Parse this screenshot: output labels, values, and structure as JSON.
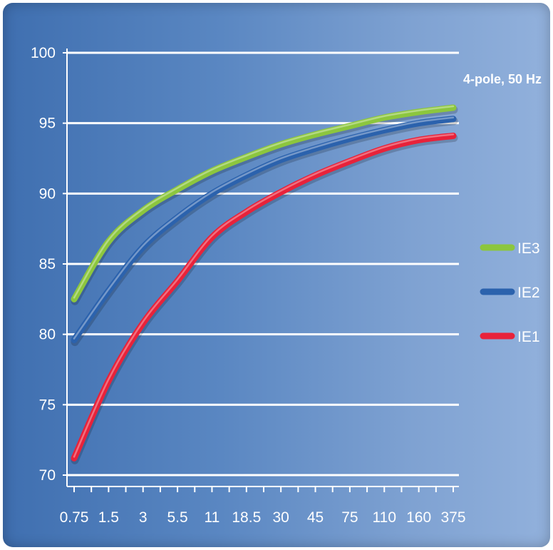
{
  "chart_data": {
    "type": "line",
    "title": "",
    "xlabel": "",
    "ylabel": "",
    "annotation": "4-pole, 50 Hz",
    "categories": [
      "0.75",
      "1.5",
      "3",
      "5.5",
      "11",
      "18.5",
      "30",
      "45",
      "75",
      "110",
      "160",
      "375"
    ],
    "ylim": [
      70,
      100
    ],
    "yticks": [
      70,
      75,
      80,
      85,
      90,
      95,
      100
    ],
    "grid": true,
    "legend_position": "right",
    "series": [
      {
        "name": "IE3",
        "color": "#8cc63e",
        "values": [
          82.5,
          86.6,
          88.8,
          90.3,
          91.6,
          92.6,
          93.5,
          94.2,
          94.8,
          95.4,
          95.8,
          96.1
        ]
      },
      {
        "name": "IE2",
        "color": "#2b62ad",
        "values": [
          79.6,
          83.1,
          86.2,
          88.3,
          90.0,
          91.3,
          92.4,
          93.2,
          93.9,
          94.5,
          95.0,
          95.3
        ]
      },
      {
        "name": "IE1",
        "color": "#e8223a",
        "values": [
          71.2,
          76.7,
          80.8,
          83.8,
          86.9,
          88.7,
          90.1,
          91.3,
          92.3,
          93.2,
          93.8,
          94.1
        ]
      }
    ]
  }
}
